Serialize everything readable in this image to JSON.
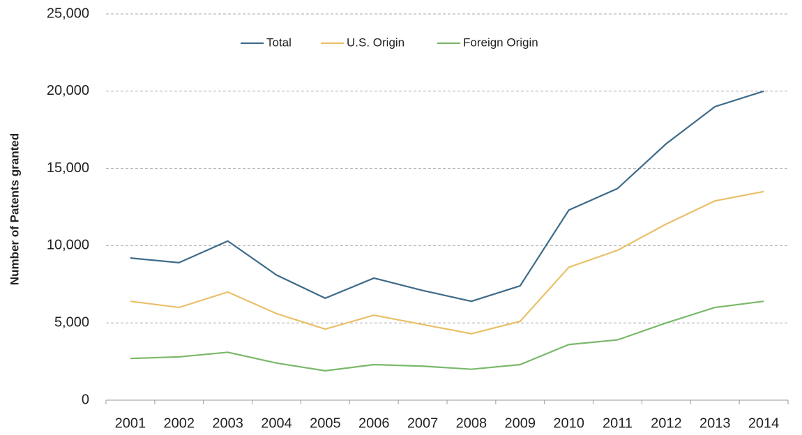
{
  "chart_data": {
    "type": "line",
    "y_label": "Number of Patents granted",
    "categories": [
      "2001",
      "2002",
      "2003",
      "2004",
      "2005",
      "2006",
      "2007",
      "2008",
      "2009",
      "2010",
      "2011",
      "2012",
      "2013",
      "2014"
    ],
    "series": [
      {
        "name": "Total",
        "color": "#3e6b8a",
        "values": [
          9200,
          8900,
          10300,
          8100,
          6600,
          7900,
          7100,
          6400,
          7400,
          12300,
          13700,
          16600,
          19000,
          20000
        ]
      },
      {
        "name": "U.S. Origin",
        "color": "#e8c068",
        "values": [
          6400,
          6000,
          7000,
          5600,
          4600,
          5500,
          4900,
          4300,
          5100,
          8600,
          9700,
          11400,
          12900,
          13500
        ]
      },
      {
        "name": "Foreign Origin",
        "color": "#7ab86a",
        "values": [
          2700,
          2800,
          3100,
          2400,
          1900,
          2300,
          2200,
          2000,
          2300,
          3600,
          3900,
          5000,
          6000,
          6400
        ]
      }
    ],
    "ylim": [
      0,
      25000
    ],
    "yticks": [
      0,
      {
        "value": 5000,
        "label": "5,000"
      },
      {
        "value": 10000,
        "label": "10,000"
      },
      {
        "value": 15000,
        "label": "15,000"
      },
      {
        "value": 20000,
        "label": "20,000"
      },
      {
        "value": 25000,
        "label": "25,000"
      }
    ],
    "grid": true,
    "legend": "top"
  }
}
